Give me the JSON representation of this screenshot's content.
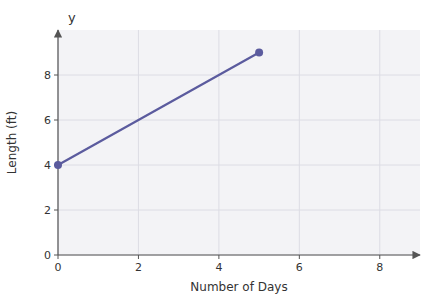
{
  "chart_data": {
    "type": "line",
    "x": [
      0,
      5
    ],
    "values": [
      4,
      9
    ],
    "color": "#5b5b9e",
    "marker": "circle",
    "xlabel": "Number of Days",
    "ylabel": "Length (ft)",
    "annotation": "y",
    "xlim": [
      0,
      9
    ],
    "ylim": [
      0,
      10
    ],
    "xticks": [
      0,
      2,
      4,
      6,
      8
    ],
    "yticks": [
      0,
      2,
      4,
      6,
      8
    ],
    "grid": true
  }
}
